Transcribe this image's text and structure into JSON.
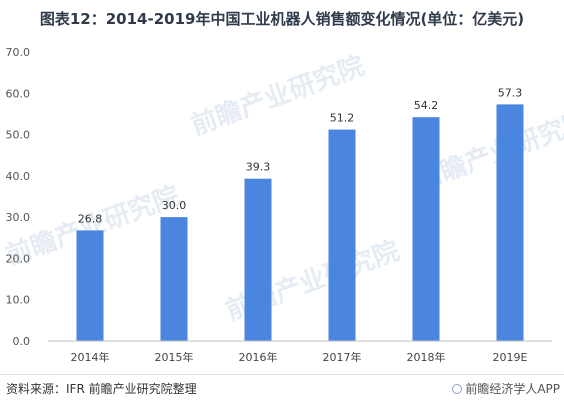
{
  "chart_data": {
    "type": "bar",
    "title": "图表12：2014-2019年中国工业机器人销售额变化情况(单位：亿美元)",
    "categories": [
      "2014年",
      "2015年",
      "2016年",
      "2017年",
      "2018年",
      "2019E"
    ],
    "values": [
      26.8,
      30.0,
      39.3,
      51.2,
      54.2,
      57.3
    ],
    "data_labels": [
      "26.8",
      "30.0",
      "39.3",
      "51.2",
      "54.2",
      "57.3"
    ],
    "ylim": [
      0,
      70
    ],
    "yticks": [
      "0.0",
      "10.0",
      "20.0",
      "30.0",
      "40.0",
      "50.0",
      "60.0",
      "70.0"
    ],
    "xlabel": "",
    "ylabel": "",
    "grid": false,
    "legend": "none",
    "bar_color": "#4a86e0"
  },
  "footer": {
    "source": "资料来源：IFR 前瞻产业研究院整理",
    "brand": "前瞻经济学人APP"
  }
}
